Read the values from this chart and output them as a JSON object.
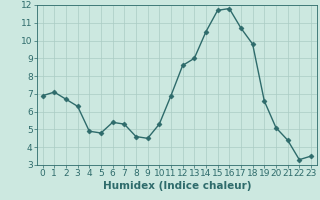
{
  "x": [
    0,
    1,
    2,
    3,
    4,
    5,
    6,
    7,
    8,
    9,
    10,
    11,
    12,
    13,
    14,
    15,
    16,
    17,
    18,
    19,
    20,
    21,
    22,
    23
  ],
  "y": [
    6.9,
    7.1,
    6.7,
    6.3,
    4.9,
    4.8,
    5.4,
    5.3,
    4.6,
    4.5,
    5.3,
    6.9,
    8.6,
    9.0,
    10.5,
    11.7,
    11.8,
    10.7,
    9.8,
    6.6,
    5.1,
    4.4,
    3.3,
    3.5
  ],
  "xlabel": "Humidex (Indice chaleur)",
  "xlim": [
    -0.5,
    23.5
  ],
  "ylim": [
    3,
    12
  ],
  "yticks": [
    3,
    4,
    5,
    6,
    7,
    8,
    9,
    10,
    11,
    12
  ],
  "xticks": [
    0,
    1,
    2,
    3,
    4,
    5,
    6,
    7,
    8,
    9,
    10,
    11,
    12,
    13,
    14,
    15,
    16,
    17,
    18,
    19,
    20,
    21,
    22,
    23
  ],
  "line_color": "#2e6b6b",
  "marker": "D",
  "marker_size": 2.5,
  "line_width": 1.0,
  "bg_color": "#cce8e0",
  "grid_color": "#aaccc4",
  "font_color": "#2e6b6b",
  "xlabel_fontsize": 7.5,
  "tick_fontsize": 6.5
}
